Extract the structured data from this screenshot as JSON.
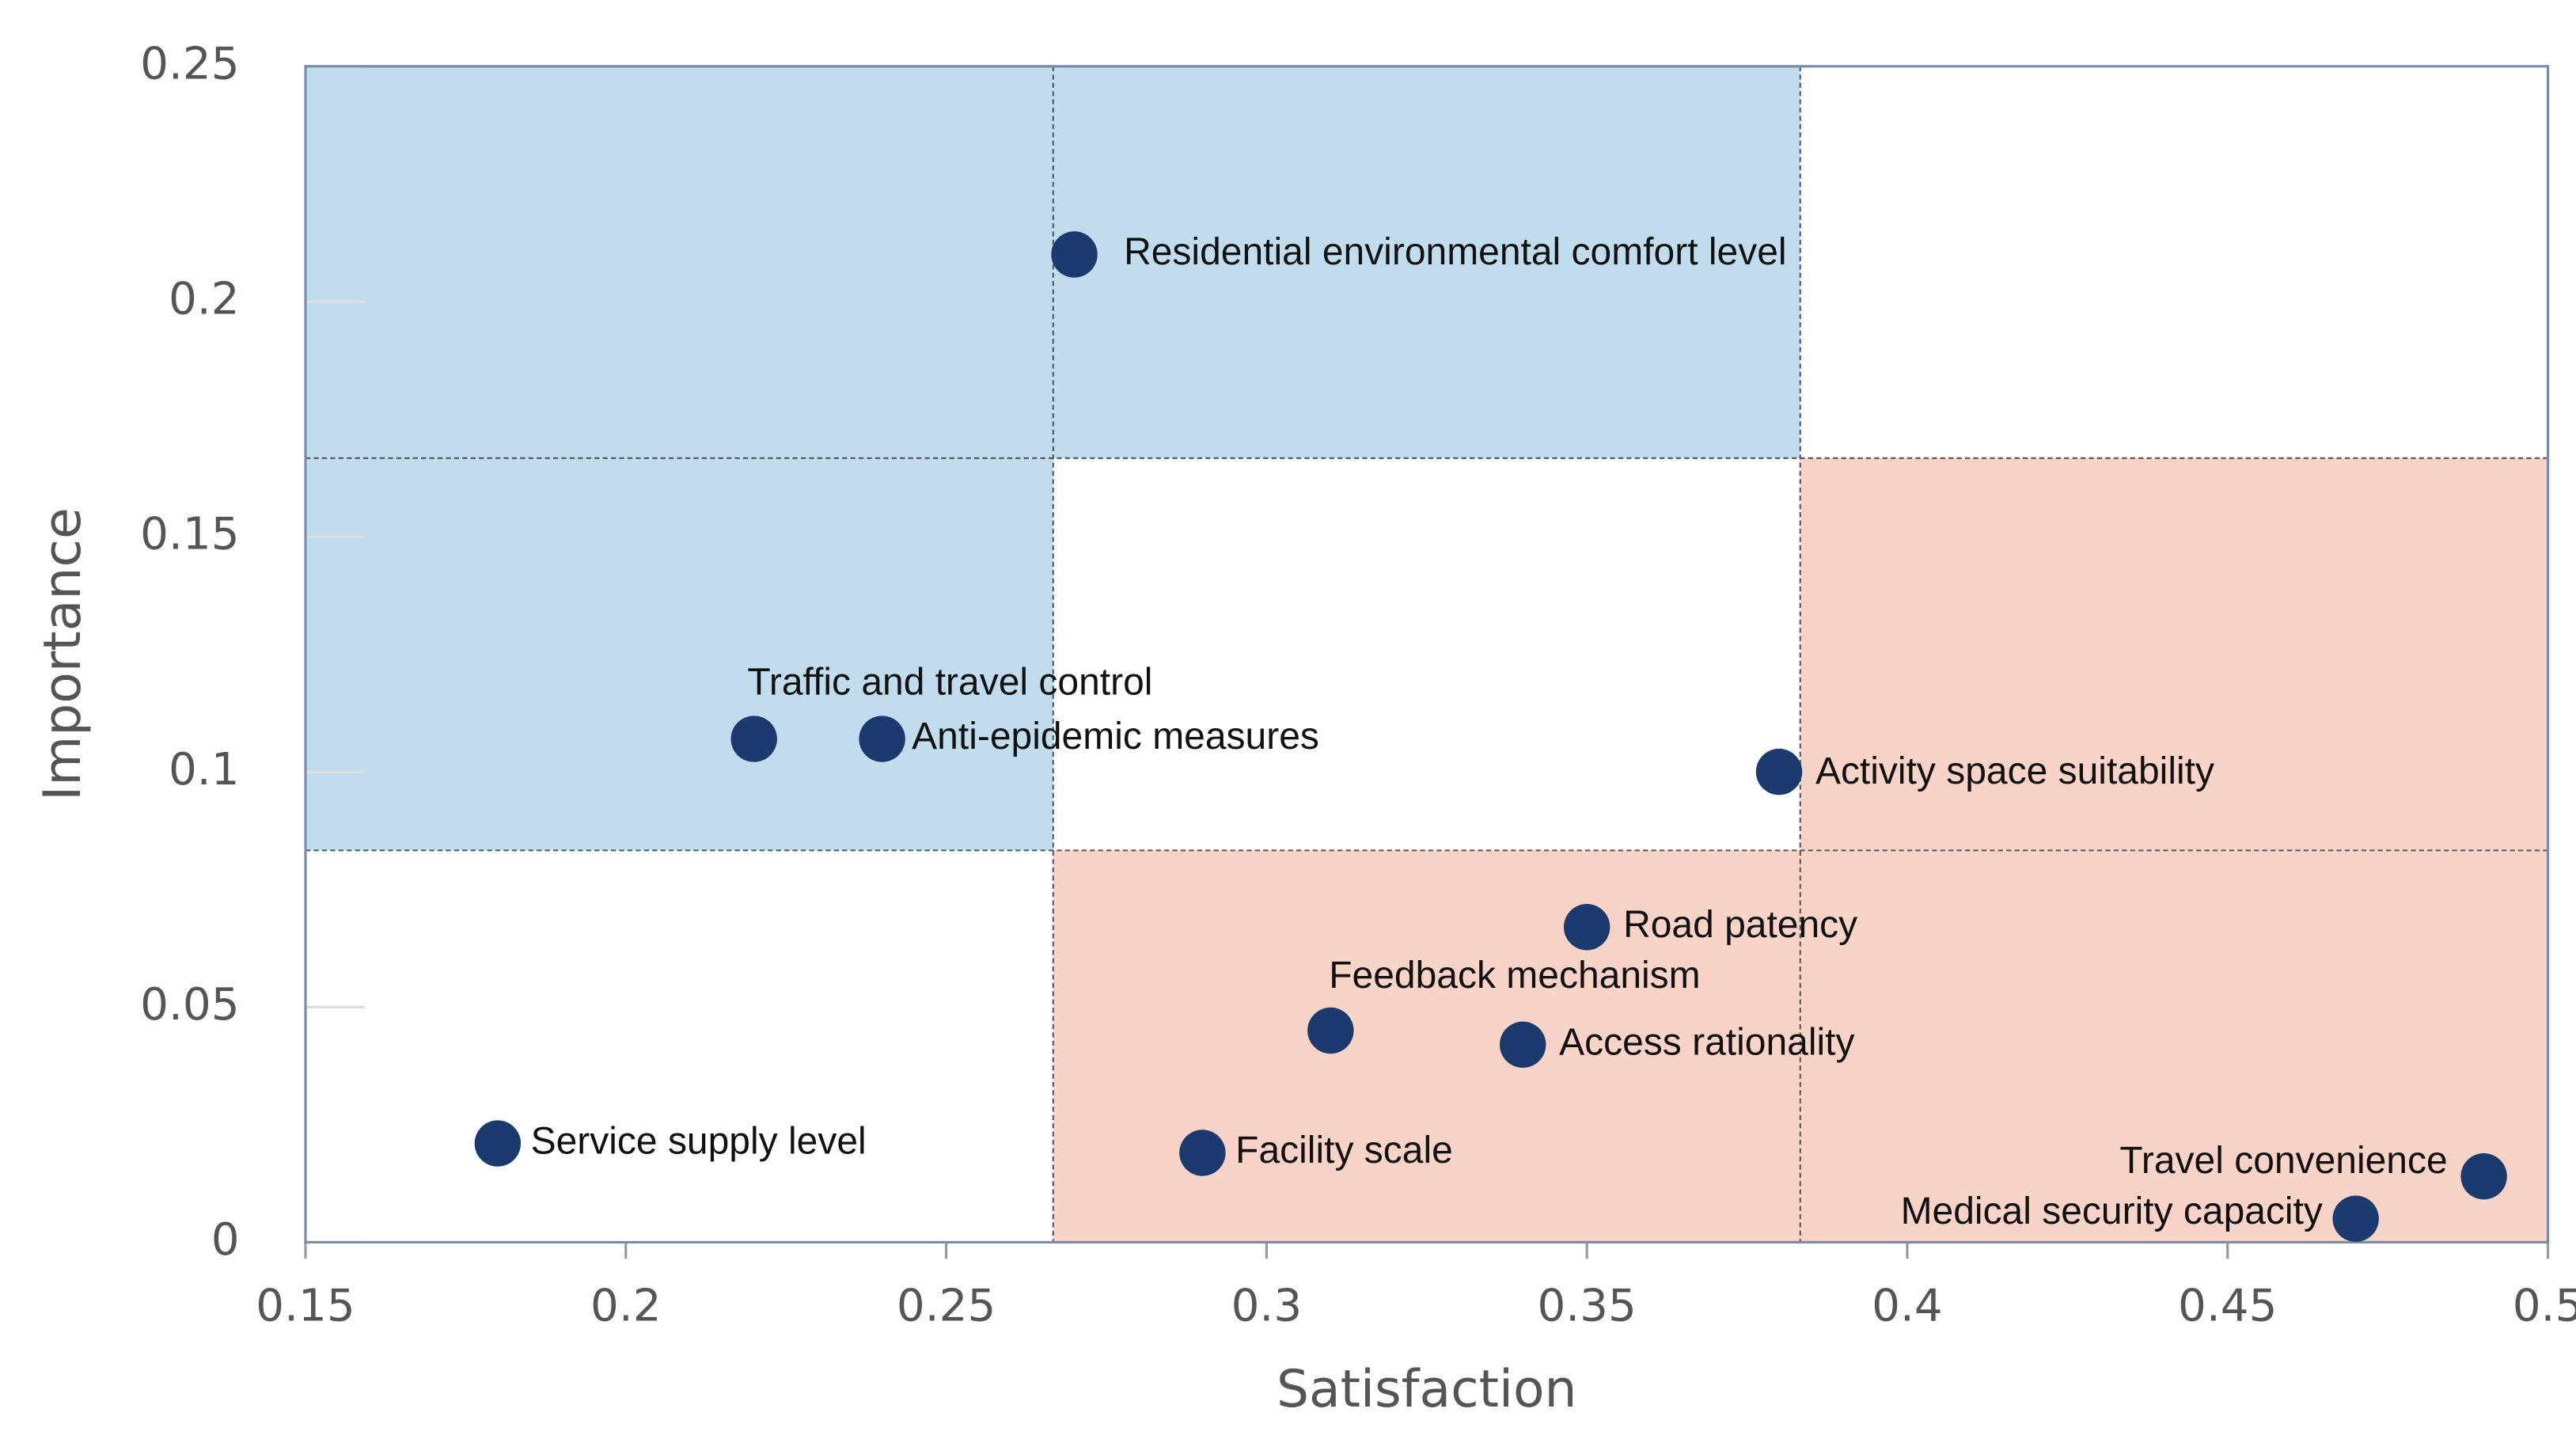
{
  "chart_data": {
    "type": "scatter",
    "x_label": "Satisfaction",
    "y_label": "Importance",
    "xlim": [
      0.15,
      0.5
    ],
    "ylim": [
      0,
      0.25
    ],
    "xticks": [
      0.15,
      0.2,
      0.25,
      0.3,
      0.35,
      0.4,
      0.45,
      0.5
    ],
    "yticks": [
      0,
      0.05,
      0.1,
      0.15,
      0.2,
      0.25
    ],
    "x_splits": [
      0.2667,
      0.3833
    ],
    "y_splits": [
      0.0833,
      0.1667
    ],
    "regions": [
      {
        "color": "#c0dced",
        "x": [
          0.15,
          0.2667
        ],
        "y": [
          0.0833,
          0.25
        ]
      },
      {
        "color": "#c0dced",
        "x": [
          0.2667,
          0.3833
        ],
        "y": [
          0.1667,
          0.25
        ]
      },
      {
        "color": "#f8d3c7",
        "x": [
          0.2667,
          0.5
        ],
        "y": [
          0,
          0.0833
        ]
      },
      {
        "color": "#f8d3c7",
        "x": [
          0.3833,
          0.5
        ],
        "y": [
          0.0833,
          0.1667
        ]
      }
    ],
    "color": "#1b3a6e",
    "labels": [
      "Residential environmental comfort level",
      "Traffic and travel control",
      "Anti-epidemic measures",
      "Activity space suitability",
      "Road patency",
      "Feedback mechanism",
      "Access rationality",
      "Service supply level",
      "Facility scale",
      "Travel convenience",
      "Medical security capacity"
    ],
    "x": [
      0.27,
      0.22,
      0.24,
      0.38,
      0.35,
      0.31,
      0.34,
      0.18,
      0.29,
      0.49,
      0.47
    ],
    "values": [
      0.21,
      0.107,
      0.107,
      0.1,
      0.067,
      0.045,
      0.042,
      0.021,
      0.019,
      0.014,
      0.005
    ]
  }
}
